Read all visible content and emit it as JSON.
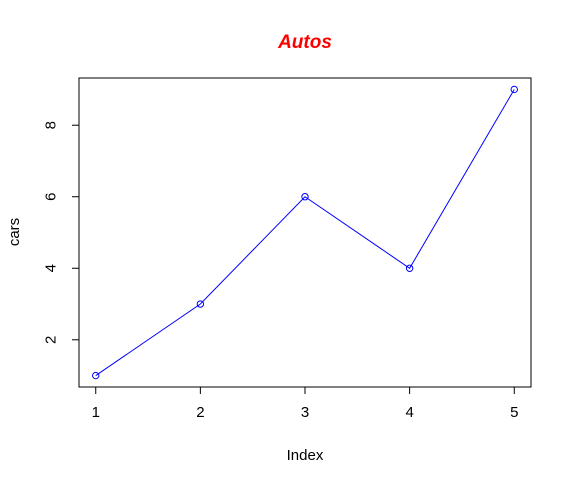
{
  "chart_data": {
    "type": "line",
    "title": "Autos",
    "title_color": "#ff0000",
    "xlabel": "Index",
    "ylabel": "cars",
    "x": [
      1,
      2,
      3,
      4,
      5
    ],
    "series": [
      {
        "values": [
          1,
          3,
          6,
          4,
          9
        ],
        "color": "#0000ff",
        "marker": "open-circle"
      }
    ],
    "xlim": [
      0.84,
      5.16
    ],
    "ylim": [
      0.68,
      9.32
    ],
    "x_ticks": [
      1,
      2,
      3,
      4,
      5
    ],
    "y_ticks": [
      2,
      4,
      6,
      8
    ],
    "grid": false,
    "legend": "none"
  }
}
